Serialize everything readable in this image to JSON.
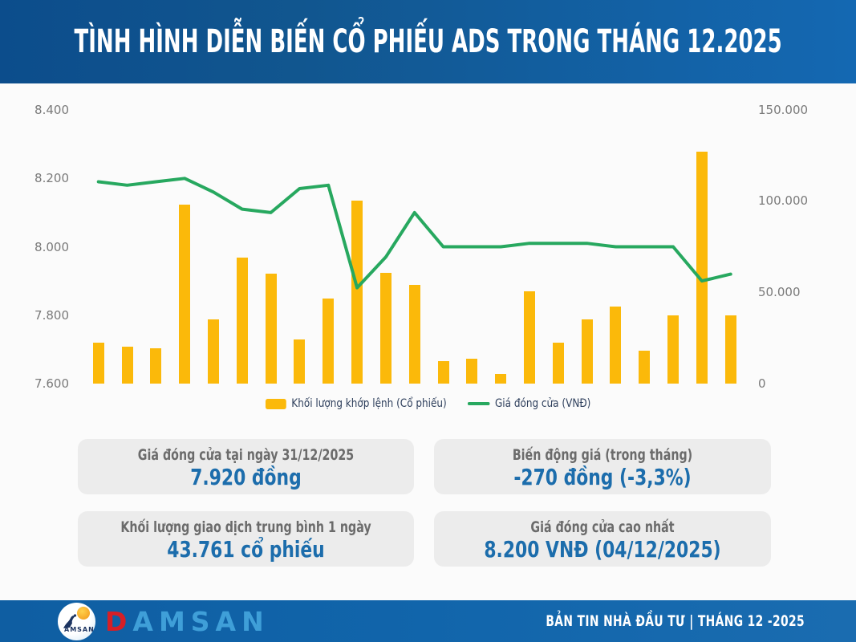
{
  "header": {
    "title": "TÌNH HÌNH DIỄN BIẾN CỔ PHIẾU ADS TRONG THÁNG 12.2025"
  },
  "chart_data": {
    "type": "bar",
    "subtype": "combo bar+line, dual axis",
    "n_points": 23,
    "x_tick_labels_visible": false,
    "grid": false,
    "legend_position": "bottom",
    "series": [
      {
        "name": "Khối lượng khớp lệnh (Cổ phiếu)",
        "type": "bar",
        "axis": "right",
        "color": "#fbb90a",
        "values": [
          22000,
          20000,
          19000,
          98000,
          35000,
          69000,
          60000,
          24000,
          46500,
          100000,
          60500,
          54000,
          12000,
          13500,
          5000,
          50500,
          22000,
          35000,
          42000,
          18000,
          37000,
          127000,
          37000
        ]
      },
      {
        "name": "Giá đóng cửa (VNĐ)",
        "type": "line",
        "axis": "left",
        "color": "#27a85f",
        "values": [
          8190,
          8180,
          8190,
          8200,
          8160,
          8110,
          8100,
          8170,
          8180,
          7880,
          7970,
          8100,
          8000,
          8000,
          8000,
          8010,
          8010,
          8010,
          8000,
          8000,
          8000,
          7900,
          7920
        ]
      }
    ],
    "left_axis": {
      "range": [
        7600,
        8400
      ],
      "ticks": [
        {
          "value": 8400,
          "label": "8.400"
        },
        {
          "value": 8200,
          "label": "8.200"
        },
        {
          "value": 8000,
          "label": "8.000"
        },
        {
          "value": 7800,
          "label": "7.800"
        },
        {
          "value": 7600,
          "label": "7.600"
        }
      ]
    },
    "right_axis": {
      "range": [
        0,
        150000
      ],
      "ticks": [
        {
          "value": 150000,
          "label": "150.000"
        },
        {
          "value": 100000,
          "label": "100.000"
        },
        {
          "value": 50000,
          "label": "50.000"
        },
        {
          "value": 0,
          "label": "0"
        }
      ]
    }
  },
  "info_boxes": [
    {
      "title": "Giá đóng cửa tại ngày 31/12/2025",
      "value": "7.920 đồng"
    },
    {
      "title": "Biến động giá (trong tháng)",
      "value": "-270 đồng (-3,3%)"
    },
    {
      "title": "Khối lượng giao dịch trung bình 1 ngày",
      "value": "43.761 cổ phiếu"
    },
    {
      "title": "Giá đóng cửa cao nhất",
      "value": "8.200 VNĐ (04/12/2025)"
    }
  ],
  "footer": {
    "brand": "DAMSAN",
    "wordmark_d": "D",
    "wordmark_rest": "AMSAN",
    "logo_circle_text": "AMSAN",
    "right_text": "BẢN TIN NHÀ ĐẦU TƯ  |  THÁNG 12 -2025"
  },
  "colors": {
    "bar": "#fbb90a",
    "line": "#27a85f",
    "header_gradient_left": "#0c4d8c",
    "header_gradient_right": "#1468b2",
    "value_blue": "#1c6dac",
    "footer_blue": "#1165ab",
    "logo_red": "#d61f26",
    "logo_light_blue": "#3f9fd8",
    "axis_label_gray": "#7a7a7a"
  }
}
